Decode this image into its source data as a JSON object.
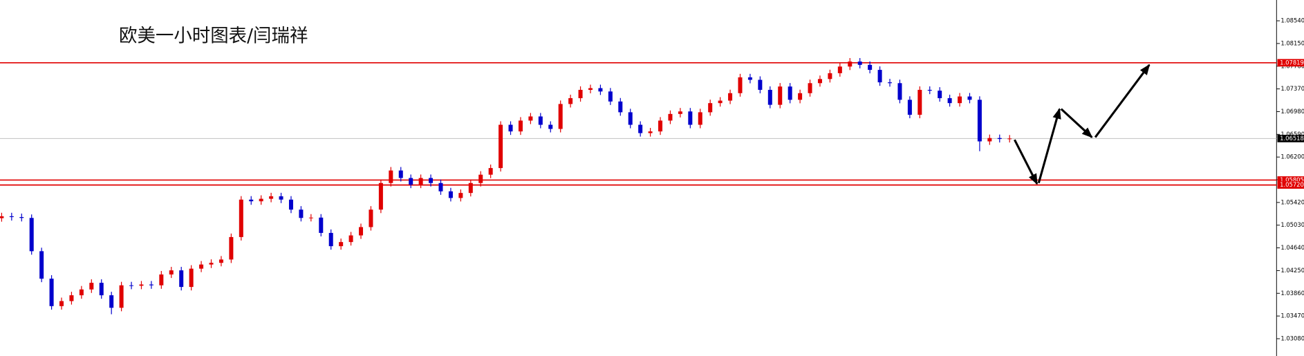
{
  "chart_data": {
    "type": "candlestick",
    "title": "欧美一小时图表/闫瑞祥",
    "up_color": "#e00000",
    "down_color": "#0000cc",
    "open": [
      1.0515,
      1.05183,
      1.05169,
      1.05154,
      1.04583,
      1.04111,
      1.0364,
      1.03726,
      1.03826,
      1.03926,
      1.0404,
      1.03826,
      1.03611,
      1.03997,
      1.0399,
      1.04011,
      1.03997,
      1.04183,
      1.04254,
      1.03969,
      1.04283,
      1.04354,
      1.04383,
      1.0444,
      1.04826,
      1.05469,
      1.0544,
      1.05483,
      1.05526,
      1.05469,
      1.05297,
      1.05154,
      1.0516,
      1.04897,
      1.04669,
      1.0474,
      1.04854,
      1.04997,
      1.05297,
      1.05754,
      1.05969,
      1.0584,
      1.05726,
      1.0584,
      1.05754,
      1.05611,
      1.05497,
      1.05583,
      1.05754,
      1.05897,
      1.06011,
      1.06754,
      1.0664,
      1.06826,
      1.06897,
      1.06754,
      1.06683,
      1.07111,
      1.07211,
      1.07354,
      1.07383,
      1.07326,
      1.07154,
      1.06969,
      1.06754,
      1.06611,
      1.0664,
      1.06826,
      1.0694,
      1.06983,
      1.06754,
      1.06969,
      1.07126,
      1.07169,
      1.07297,
      1.07569,
      1.07526,
      1.07354,
      1.07097,
      1.07411,
      1.07183,
      1.07297,
      1.07469,
      1.0754,
      1.0764,
      1.07754,
      1.0784,
      1.07783,
      1.07697,
      1.07483,
      1.07469,
      1.07183,
      1.06926,
      1.07354,
      1.0734,
      1.07211,
      1.07126,
      1.0724,
      1.07183,
      1.06469,
      1.06526,
      1.0651
    ],
    "high": [
      1.05243,
      1.05243,
      1.05229,
      1.05214,
      1.04643,
      1.04171,
      1.03786,
      1.03886,
      1.03986,
      1.041,
      1.041,
      1.03886,
      1.04057,
      1.04057,
      1.04071,
      1.04071,
      1.04243,
      1.04314,
      1.04314,
      1.04343,
      1.04414,
      1.04443,
      1.045,
      1.04886,
      1.05529,
      1.05529,
      1.05543,
      1.05586,
      1.05586,
      1.05529,
      1.05357,
      1.0522,
      1.0522,
      1.04957,
      1.048,
      1.04914,
      1.05057,
      1.05357,
      1.05814,
      1.06029,
      1.06029,
      1.059,
      1.059,
      1.059,
      1.05814,
      1.05671,
      1.05643,
      1.05814,
      1.05957,
      1.06071,
      1.06814,
      1.06814,
      1.06886,
      1.06957,
      1.06957,
      1.06814,
      1.07171,
      1.07271,
      1.07414,
      1.07443,
      1.07443,
      1.07386,
      1.07214,
      1.07029,
      1.06814,
      1.067,
      1.06886,
      1.07,
      1.07043,
      1.07043,
      1.07029,
      1.07186,
      1.07229,
      1.07357,
      1.07629,
      1.07629,
      1.07586,
      1.07414,
      1.07471,
      1.07471,
      1.07357,
      1.07529,
      1.076,
      1.077,
      1.07814,
      1.079,
      1.079,
      1.07843,
      1.07757,
      1.07543,
      1.07529,
      1.07243,
      1.07414,
      1.07414,
      1.074,
      1.07271,
      1.073,
      1.073,
      1.07243,
      1.06586,
      1.06586,
      1.06578
    ],
    "low": [
      1.0509,
      1.05109,
      1.05094,
      1.04523,
      1.04051,
      1.0358,
      1.0358,
      1.03666,
      1.03766,
      1.03866,
      1.03766,
      1.035,
      1.03551,
      1.0393,
      1.0393,
      1.03937,
      1.03937,
      1.04123,
      1.03909,
      1.03909,
      1.04223,
      1.04294,
      1.04323,
      1.0438,
      1.04766,
      1.0538,
      1.0538,
      1.05423,
      1.05409,
      1.05237,
      1.05094,
      1.05094,
      1.04837,
      1.04609,
      1.04609,
      1.0468,
      1.04794,
      1.04937,
      1.05237,
      1.05694,
      1.0578,
      1.05666,
      1.05666,
      1.05694,
      1.05551,
      1.05437,
      1.05437,
      1.05523,
      1.05694,
      1.05837,
      1.05951,
      1.0658,
      1.0658,
      1.06766,
      1.06694,
      1.06623,
      1.06623,
      1.07051,
      1.07151,
      1.07294,
      1.07266,
      1.07094,
      1.06909,
      1.06694,
      1.06551,
      1.06551,
      1.0658,
      1.06766,
      1.0688,
      1.06694,
      1.06694,
      1.06909,
      1.07066,
      1.07109,
      1.07237,
      1.07466,
      1.07294,
      1.07037,
      1.07037,
      1.07123,
      1.07123,
      1.07237,
      1.07409,
      1.0748,
      1.0758,
      1.07694,
      1.07723,
      1.07637,
      1.07423,
      1.07409,
      1.07123,
      1.06866,
      1.06866,
      1.0728,
      1.07151,
      1.07066,
      1.07066,
      1.07123,
      1.063,
      1.06409,
      1.0645,
      1.0645
    ],
    "close": [
      1.05183,
      1.05169,
      1.05154,
      1.04583,
      1.04111,
      1.0364,
      1.03726,
      1.03826,
      1.03926,
      1.0404,
      1.03826,
      1.03611,
      1.03997,
      1.0399,
      1.04011,
      1.03997,
      1.04183,
      1.04254,
      1.03969,
      1.04283,
      1.04354,
      1.04383,
      1.0444,
      1.04826,
      1.05469,
      1.0544,
      1.05483,
      1.05526,
      1.05469,
      1.05297,
      1.05154,
      1.0516,
      1.04897,
      1.04669,
      1.0474,
      1.04854,
      1.04997,
      1.05297,
      1.05754,
      1.05969,
      1.0584,
      1.05726,
      1.0584,
      1.05754,
      1.05611,
      1.05497,
      1.05583,
      1.05754,
      1.05897,
      1.06011,
      1.06754,
      1.0664,
      1.06826,
      1.06897,
      1.06754,
      1.06683,
      1.07111,
      1.07211,
      1.07354,
      1.07383,
      1.07326,
      1.07154,
      1.06969,
      1.06754,
      1.06611,
      1.0664,
      1.06826,
      1.0694,
      1.06983,
      1.06754,
      1.06969,
      1.07126,
      1.07169,
      1.07297,
      1.07569,
      1.07526,
      1.07354,
      1.07097,
      1.07411,
      1.07183,
      1.07297,
      1.07469,
      1.0754,
      1.0764,
      1.07754,
      1.0784,
      1.07783,
      1.07697,
      1.07483,
      1.07469,
      1.07183,
      1.06926,
      1.07354,
      1.0734,
      1.07211,
      1.07126,
      1.0724,
      1.07183,
      1.06469,
      1.06526,
      1.0651,
      1.06518
    ],
    "ylim": [
      1.02783,
      1.08897
    ],
    "yticks": [
      {
        "value": 1.0854,
        "label": "1.08540"
      },
      {
        "value": 1.0815,
        "label": "1.08150"
      },
      {
        "value": 1.0776,
        "label": "1.07760"
      },
      {
        "value": 1.0737,
        "label": "1.07370"
      },
      {
        "value": 1.0698,
        "label": "1.06980"
      },
      {
        "value": 1.0659,
        "label": "1.06590"
      },
      {
        "value": 1.062,
        "label": "1.06200"
      },
      {
        "value": 1.0581,
        "label": "1.05810"
      },
      {
        "value": 1.0542,
        "label": "1.05420"
      },
      {
        "value": 1.0503,
        "label": "1.05030"
      },
      {
        "value": 1.0464,
        "label": "1.04640"
      },
      {
        "value": 1.0425,
        "label": "1.04250"
      },
      {
        "value": 1.0386,
        "label": "1.03860"
      },
      {
        "value": 1.0347,
        "label": "1.03470"
      },
      {
        "value": 1.0308,
        "label": "1.03080"
      }
    ],
    "price_lines": [
      1.07819,
      1.05805,
      {
        "value": 1.0572,
        "label": "1.05720"
      }
    ],
    "price_line_color": "#e00000",
    "current_price": 1.06518,
    "current_price_color": "#c0c0c0"
  }
}
